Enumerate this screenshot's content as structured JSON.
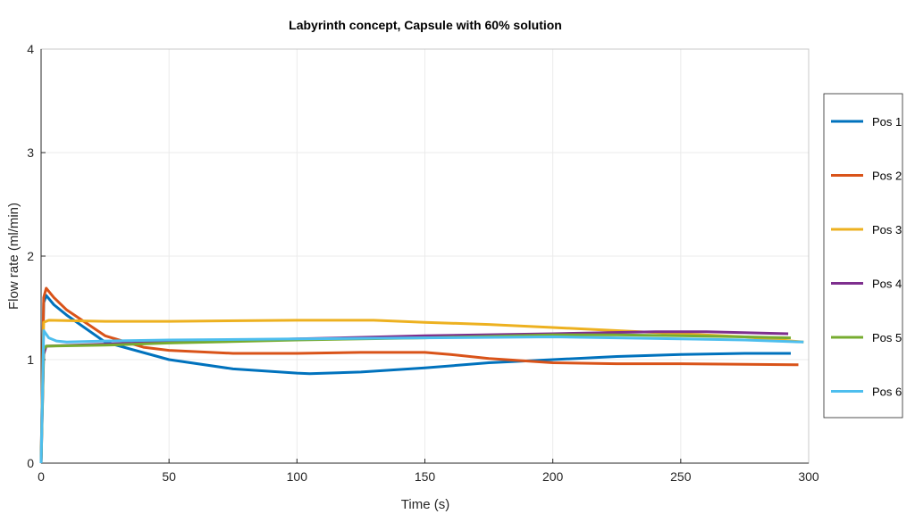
{
  "chart_data": {
    "type": "line",
    "title": "Labyrinth concept, Capsule with 60% solution",
    "xlabel": "Time (s)",
    "ylabel": "Flow rate (ml/min)",
    "xlim": [
      0,
      300
    ],
    "ylim": [
      0,
      4
    ],
    "xticks": [
      0,
      50,
      100,
      150,
      200,
      250,
      300
    ],
    "yticks": [
      0,
      1,
      2,
      3,
      4
    ],
    "grid": true,
    "legend": "right-outside",
    "series": [
      {
        "name": "Pos 1",
        "color": "#0072BD",
        "x": [
          0,
          1,
          2,
          5,
          10,
          25,
          50,
          75,
          100,
          105,
          125,
          150,
          175,
          200,
          225,
          250,
          275,
          293
        ],
        "y": [
          0,
          1.55,
          1.62,
          1.53,
          1.43,
          1.17,
          1.0,
          0.91,
          0.87,
          0.865,
          0.88,
          0.92,
          0.97,
          1.0,
          1.03,
          1.05,
          1.06,
          1.06
        ]
      },
      {
        "name": "Pos 2",
        "color": "#D95319",
        "x": [
          0,
          1,
          2,
          5,
          10,
          25,
          40,
          50,
          75,
          100,
          125,
          150,
          160,
          175,
          200,
          225,
          250,
          275,
          296
        ],
        "y": [
          0,
          1.6,
          1.69,
          1.6,
          1.48,
          1.23,
          1.12,
          1.09,
          1.06,
          1.06,
          1.07,
          1.07,
          1.05,
          1.01,
          0.97,
          0.96,
          0.96,
          0.955,
          0.95
        ]
      },
      {
        "name": "Pos 3",
        "color": "#EDB120",
        "x": [
          0,
          1,
          3,
          25,
          50,
          100,
          130,
          150,
          175,
          200,
          225,
          250,
          275,
          298
        ],
        "y": [
          0,
          1.36,
          1.38,
          1.37,
          1.37,
          1.38,
          1.38,
          1.36,
          1.34,
          1.31,
          1.28,
          1.25,
          1.22,
          1.17
        ]
      },
      {
        "name": "Pos 4",
        "color": "#7E2F8E",
        "x": [
          0,
          1,
          2,
          25,
          50,
          100,
          150,
          200,
          240,
          260,
          292
        ],
        "y": [
          0,
          1.05,
          1.13,
          1.15,
          1.17,
          1.2,
          1.23,
          1.25,
          1.27,
          1.27,
          1.25
        ]
      },
      {
        "name": "Pos 5",
        "color": "#77AC30",
        "x": [
          0,
          1,
          2,
          25,
          50,
          100,
          150,
          200,
          225,
          250,
          275,
          293
        ],
        "y": [
          0,
          1.1,
          1.13,
          1.14,
          1.16,
          1.19,
          1.21,
          1.24,
          1.24,
          1.23,
          1.22,
          1.21
        ]
      },
      {
        "name": "Pos 6",
        "color": "#4DBEEE",
        "x": [
          0,
          1,
          3,
          6,
          10,
          25,
          50,
          100,
          150,
          200,
          250,
          275,
          298
        ],
        "y": [
          0,
          1.28,
          1.21,
          1.18,
          1.17,
          1.18,
          1.19,
          1.2,
          1.21,
          1.22,
          1.2,
          1.19,
          1.17
        ]
      }
    ]
  }
}
